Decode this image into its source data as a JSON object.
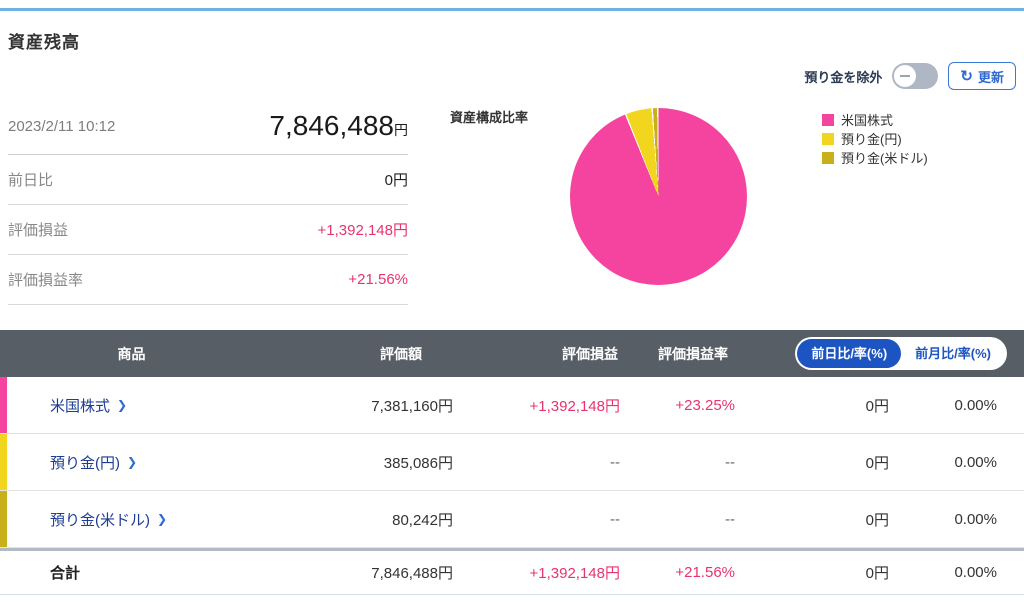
{
  "page": {
    "title": "資産残高"
  },
  "controls": {
    "toggle_label": "預り金を除外",
    "refresh_label": "更新",
    "refresh_icon": "↻"
  },
  "summary": {
    "timestamp": "2023/2/11 10:12",
    "total_value": "7,846,488",
    "total_unit": "円",
    "rows": [
      {
        "label": "前日比",
        "value": "0円"
      },
      {
        "label": "評価損益",
        "value": "+1,392,148円"
      },
      {
        "label": "評価損益率",
        "value": "+21.56%"
      }
    ]
  },
  "chart_data": {
    "type": "pie",
    "title": "資産構成比率",
    "legend_position": "right",
    "slices": [
      {
        "label": "米国株式",
        "value_yen": 7381160,
        "percent": 94.07,
        "color": "#F4449F"
      },
      {
        "label": "預り金(円)",
        "value_yen": 385086,
        "percent": 4.91,
        "color": "#F2D51F"
      },
      {
        "label": "預り金(米ドル)",
        "value_yen": 80242,
        "percent": 1.02,
        "color": "#C8B01B"
      }
    ]
  },
  "table": {
    "headers": {
      "product": "商品",
      "valuation": "評価額",
      "gain": "評価損益",
      "gain_rate": "評価損益率"
    },
    "segments": [
      {
        "label": "前日比/率(%)",
        "active": true
      },
      {
        "label": "前月比/率(%)",
        "active": false
      }
    ],
    "rows": [
      {
        "name": "米国株式",
        "stripe_color": "#F4449F",
        "valuation": "7,381,160円",
        "gain": "+1,392,148円",
        "gain_rate": "+23.25%",
        "day_change": "0円",
        "day_rate": "0.00%"
      },
      {
        "name": "預り金(円)",
        "stripe_color": "#F2D51F",
        "valuation": "385,086円",
        "gain": "--",
        "gain_rate": "--",
        "day_change": "0円",
        "day_rate": "0.00%"
      },
      {
        "name": "預り金(米ドル)",
        "stripe_color": "#C8B01B",
        "valuation": "80,242円",
        "gain": "--",
        "gain_rate": "--",
        "day_change": "0円",
        "day_rate": "0.00%"
      }
    ],
    "total_row": {
      "name": "合計",
      "valuation": "7,846,488円",
      "gain": "+1,392,148円",
      "gain_rate": "+21.56%",
      "day_change": "0円",
      "day_rate": "0.00%"
    }
  }
}
